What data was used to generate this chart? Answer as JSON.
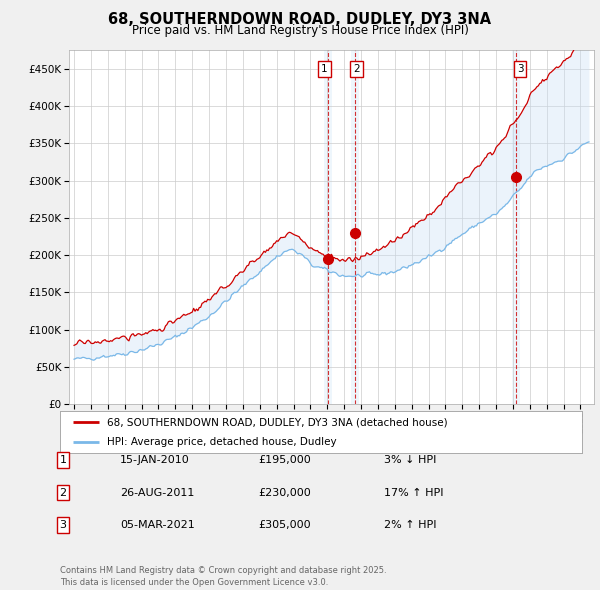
{
  "title": "68, SOUTHERNDOWN ROAD, DUDLEY, DY3 3NA",
  "subtitle": "Price paid vs. HM Land Registry's House Price Index (HPI)",
  "background_color": "#f0f0f0",
  "plot_bg_color": "#ffffff",
  "ylabel_ticks": [
    "£0",
    "£50K",
    "£100K",
    "£150K",
    "£200K",
    "£250K",
    "£300K",
    "£350K",
    "£400K",
    "£450K"
  ],
  "ytick_values": [
    0,
    50000,
    100000,
    150000,
    200000,
    250000,
    300000,
    350000,
    400000,
    450000
  ],
  "ylim": [
    0,
    475000
  ],
  "xlim_start": 1994.7,
  "xlim_end": 2025.8,
  "legend_line1": "68, SOUTHERNDOWN ROAD, DUDLEY, DY3 3NA (detached house)",
  "legend_line2": "HPI: Average price, detached house, Dudley",
  "transaction1_label": "1",
  "transaction1_date": "15-JAN-2010",
  "transaction1_price": "£195,000",
  "transaction1_hpi": "3% ↓ HPI",
  "transaction1_year": 2010.04,
  "transaction1_value": 195000,
  "transaction2_label": "2",
  "transaction2_date": "26-AUG-2011",
  "transaction2_price": "£230,000",
  "transaction2_hpi": "17% ↑ HPI",
  "transaction2_year": 2011.65,
  "transaction2_value": 230000,
  "transaction3_label": "3",
  "transaction3_date": "05-MAR-2021",
  "transaction3_price": "£305,000",
  "transaction3_hpi": "2% ↑ HPI",
  "transaction3_year": 2021.17,
  "transaction3_value": 305000,
  "footnote": "Contains HM Land Registry data © Crown copyright and database right 2025.\nThis data is licensed under the Open Government Licence v3.0.",
  "hpi_color": "#7ab8e8",
  "price_color": "#cc0000",
  "vline_color": "#cc0000",
  "dot_color": "#cc0000",
  "fill_color": "#c8dff5"
}
